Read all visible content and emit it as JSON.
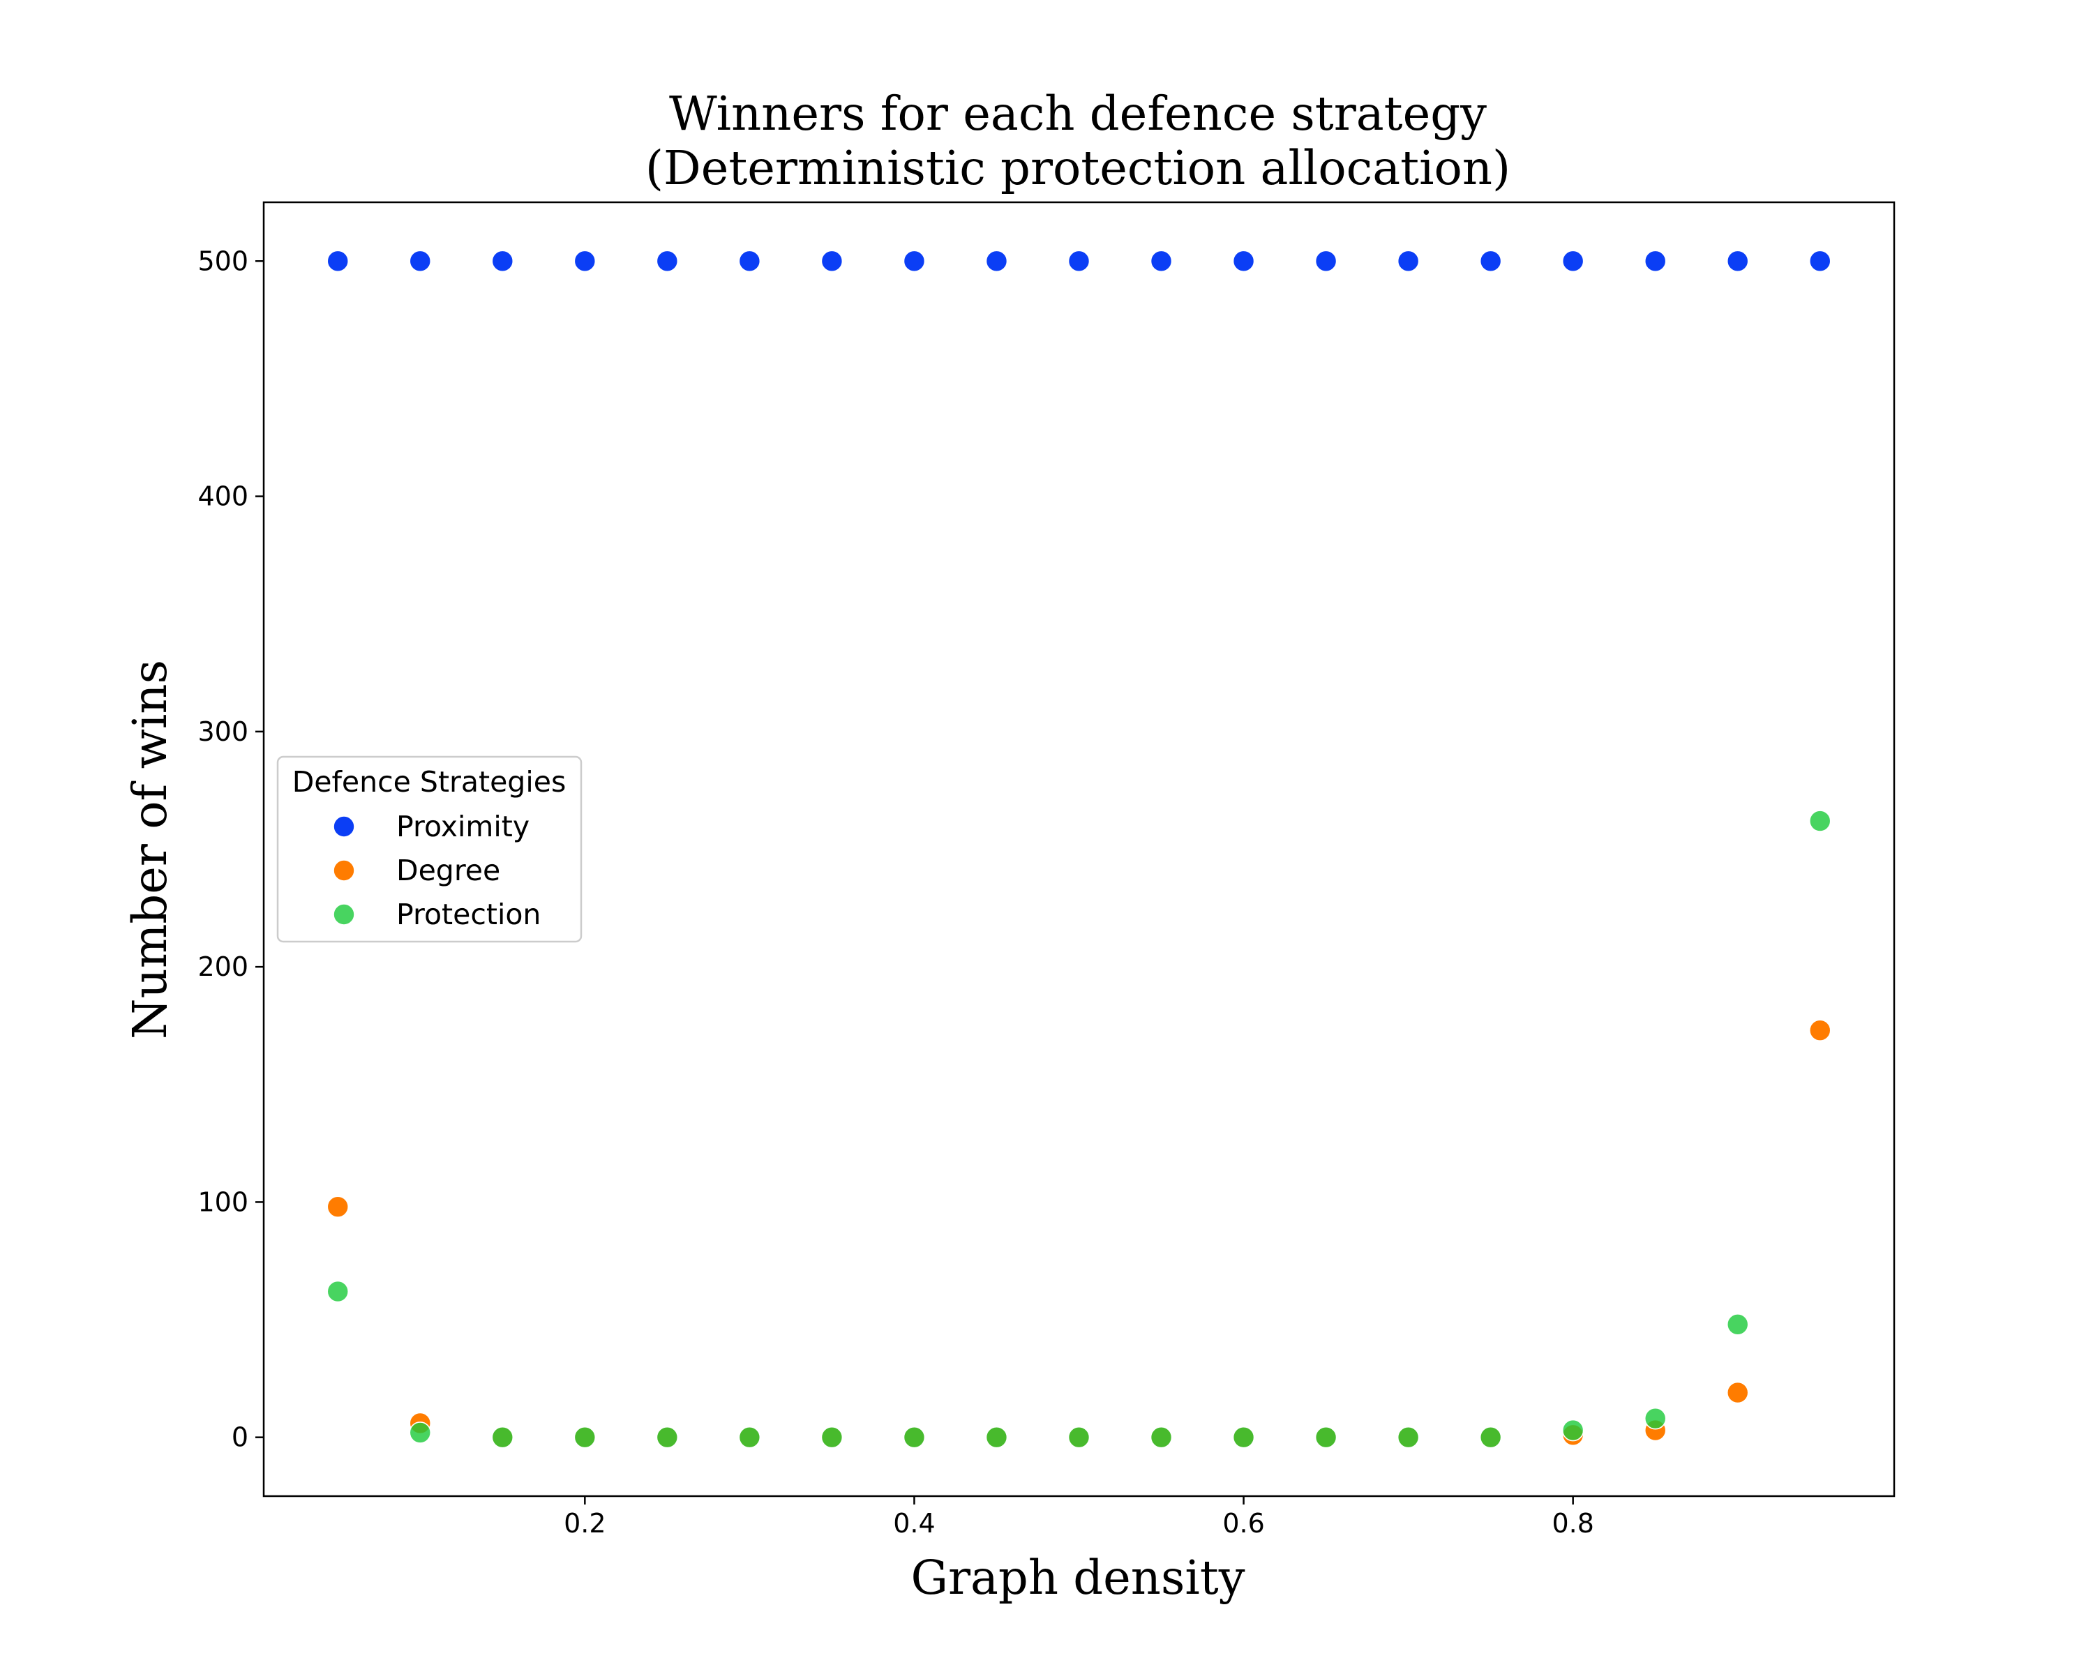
{
  "chart_data": {
    "type": "scatter",
    "title": [
      "Winners for each defence strategy",
      "(Deterministic protection allocation)"
    ],
    "xlabel": "Graph density",
    "ylabel": "Number of wins",
    "xlim": [
      0.005,
      0.995
    ],
    "ylim": [
      -25,
      525
    ],
    "x_ticks": [
      0.2,
      0.4,
      0.6,
      0.8
    ],
    "x_tick_labels": [
      "0.2",
      "0.4",
      "0.6",
      "0.8"
    ],
    "y_ticks": [
      0,
      100,
      200,
      300,
      400,
      500
    ],
    "y_tick_labels": [
      "0",
      "100",
      "200",
      "300",
      "400",
      "500"
    ],
    "grid": false,
    "legend": {
      "title": "Defence Strategies",
      "placement": "center-left"
    },
    "x": [
      0.05,
      0.1,
      0.15,
      0.2,
      0.25,
      0.3,
      0.35,
      0.4,
      0.45,
      0.5,
      0.55,
      0.6,
      0.65,
      0.7,
      0.75,
      0.8,
      0.85,
      0.9,
      0.95
    ],
    "series": [
      {
        "name": "Proximity",
        "color": "#0b3ef5",
        "alpha": 1.0,
        "values": [
          500,
          500,
          500,
          500,
          500,
          500,
          500,
          500,
          500,
          500,
          500,
          500,
          500,
          500,
          500,
          500,
          500,
          500,
          500
        ]
      },
      {
        "name": "Degree",
        "color": "#ff7c00",
        "alpha": 1.0,
        "values": [
          98,
          6,
          0,
          0,
          0,
          0,
          0,
          0,
          0,
          0,
          0,
          0,
          0,
          0,
          0,
          1,
          3,
          19,
          173
        ]
      },
      {
        "name": "Protection",
        "color": "#1ac938",
        "alpha": 0.8,
        "values": [
          62,
          2,
          0,
          0,
          0,
          0,
          0,
          0,
          0,
          0,
          0,
          0,
          0,
          0,
          0,
          3,
          8,
          48,
          262
        ]
      }
    ]
  }
}
